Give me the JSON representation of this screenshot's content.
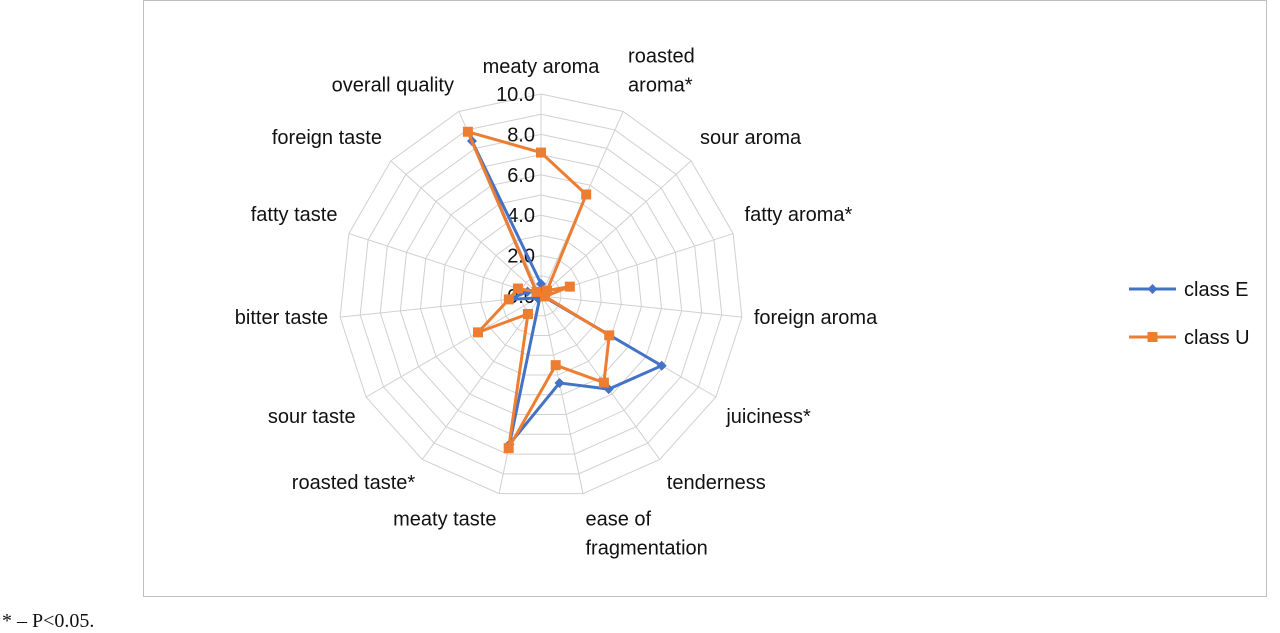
{
  "footnote": "* – P<0.05.",
  "chart_data": {
    "type": "radar",
    "title": "",
    "categories": [
      "meaty aroma",
      "roasted aroma*",
      "sour aroma",
      "fatty aroma*",
      "foreign aroma",
      "juiciness*",
      "tenderness",
      "ease of fragmentation",
      "meaty taste",
      "roasted taste*",
      "sour taste",
      "bitter taste",
      "fatty taste",
      "foreign taste",
      "overall quality"
    ],
    "category_label_lines": [
      [
        "meaty aroma"
      ],
      [
        "roasted",
        "aroma*"
      ],
      [
        "sour aroma"
      ],
      [
        "fatty aroma*"
      ],
      [
        "foreign aroma"
      ],
      [
        "juiciness*"
      ],
      [
        "tenderness"
      ],
      [
        "ease of",
        "fragmentation"
      ],
      [
        "meaty taste"
      ],
      [
        "roasted taste*"
      ],
      [
        "sour taste"
      ],
      [
        "bitter taste"
      ],
      [
        "fatty taste"
      ],
      [
        "foreign taste"
      ],
      [
        "overall quality"
      ]
    ],
    "rlim": [
      0,
      10
    ],
    "ticks": [
      "0.0",
      "2.0",
      "4.0",
      "6.0",
      "8.0",
      "10.0"
    ],
    "grid": true,
    "legend_position": "right",
    "series": [
      {
        "name": "class E",
        "color": "#4472C4",
        "marker": "diamond",
        "values": [
          0.6,
          0.2,
          0.1,
          0.2,
          0.1,
          6.9,
          5.7,
          4.4,
          7.5,
          0.1,
          0.2,
          1.6,
          0.7,
          0.3,
          8.4
        ]
      },
      {
        "name": "class U",
        "color": "#ED7D31",
        "marker": "square",
        "values": [
          7.1,
          5.5,
          0.4,
          1.5,
          0.2,
          3.9,
          5.3,
          3.5,
          7.7,
          1.1,
          3.6,
          1.6,
          1.2,
          0.3,
          8.9
        ]
      }
    ]
  }
}
